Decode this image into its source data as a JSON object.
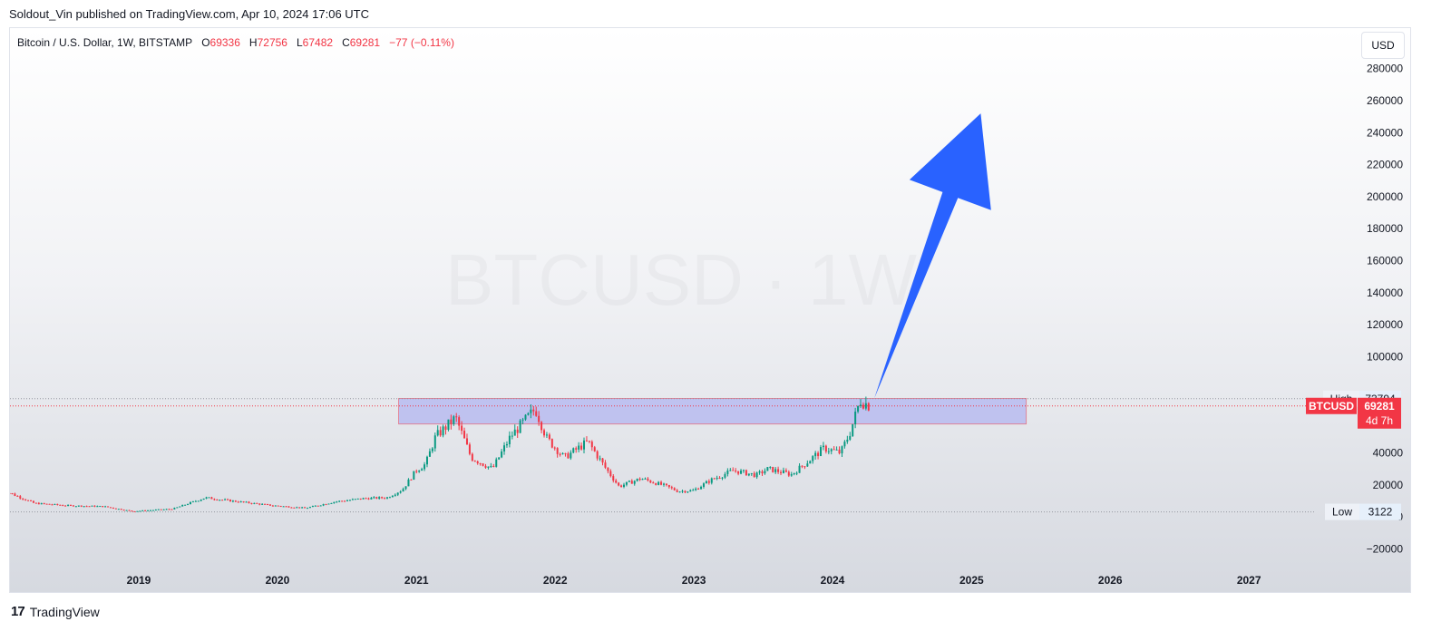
{
  "header": {
    "published": "Soldout_Vin published on TradingView.com, Apr 10, 2024 17:06 UTC"
  },
  "legend": {
    "symbol": "Bitcoin / U.S. Dollar, 1W, BITSTAMP",
    "o_label": "O",
    "o": "69336",
    "h_label": "H",
    "h": "72756",
    "l_label": "L",
    "l": "67482",
    "c_label": "C",
    "c": "69281",
    "change": "−77 (−0.11%)"
  },
  "currency_button": "USD",
  "footer": {
    "logo": "17",
    "brand": "TradingView"
  },
  "colors": {
    "up": "#089981",
    "down": "#f23645",
    "arrow": "#2962ff",
    "zone": "#b2b5f0"
  },
  "chart_data": {
    "type": "candlestick",
    "symbol": "BTCUSD",
    "interval": "1W",
    "x_ticks": [
      "2019",
      "2020",
      "2021",
      "2022",
      "2023",
      "2024",
      "2025",
      "2026",
      "2027"
    ],
    "y_ticks": [
      280000,
      260000,
      240000,
      220000,
      200000,
      180000,
      160000,
      140000,
      120000,
      100000,
      40000,
      20000,
      0,
      -20000
    ],
    "ylim": [
      -26000,
      290000
    ],
    "series_close_points": [
      [
        "2018-01-05",
        17000
      ],
      [
        "2018-04-01",
        8500
      ],
      [
        "2018-07-01",
        7000
      ],
      [
        "2018-10-01",
        6500
      ],
      [
        "2018-12-15",
        3500
      ],
      [
        "2019-04-01",
        5000
      ],
      [
        "2019-06-25",
        12000
      ],
      [
        "2019-09-01",
        10000
      ],
      [
        "2019-12-15",
        7200
      ],
      [
        "2020-03-15",
        5500
      ],
      [
        "2020-06-01",
        9500
      ],
      [
        "2020-08-15",
        11500
      ],
      [
        "2020-10-15",
        12000
      ],
      [
        "2020-11-25",
        17000
      ],
      [
        "2020-12-31",
        29000
      ],
      [
        "2021-01-25",
        33000
      ],
      [
        "2021-02-20",
        50000
      ],
      [
        "2021-04-14",
        62000
      ],
      [
        "2021-05-25",
        37000
      ],
      [
        "2021-07-20",
        30000
      ],
      [
        "2021-09-05",
        50000
      ],
      [
        "2021-10-20",
        62000
      ],
      [
        "2021-11-10",
        67500
      ],
      [
        "2021-12-10",
        49000
      ],
      [
        "2022-01-25",
        37000
      ],
      [
        "2022-03-28",
        47000
      ],
      [
        "2022-05-15",
        30000
      ],
      [
        "2022-06-18",
        19000
      ],
      [
        "2022-08-15",
        24000
      ],
      [
        "2022-10-15",
        19500
      ],
      [
        "2022-11-21",
        16000
      ],
      [
        "2022-12-31",
        16500
      ],
      [
        "2023-02-15",
        23000
      ],
      [
        "2023-04-15",
        29000
      ],
      [
        "2023-06-15",
        26000
      ],
      [
        "2023-07-15",
        30000
      ],
      [
        "2023-09-15",
        26500
      ],
      [
        "2023-10-25",
        34000
      ],
      [
        "2023-12-10",
        43000
      ],
      [
        "2024-01-22",
        40000
      ],
      [
        "2024-02-15",
        52000
      ],
      [
        "2024-03-14",
        73000
      ],
      [
        "2024-04-08",
        69281
      ]
    ],
    "annotations": {
      "high": {
        "label": "High",
        "value": 73794
      },
      "low": {
        "label": "Low",
        "value": 3122
      },
      "last": {
        "label": "BTCUSD",
        "value": "69281",
        "countdown": "4d 7h"
      },
      "zone": {
        "from": "2020-11-15",
        "to": "2025-05-25",
        "low": 58000,
        "high": 74000
      },
      "arrow": {
        "from": [
          "2024-04-20",
          74000
        ],
        "to": [
          "2025-01-25",
          252000
        ]
      }
    },
    "watermark": "BTCUSD · 1W"
  }
}
